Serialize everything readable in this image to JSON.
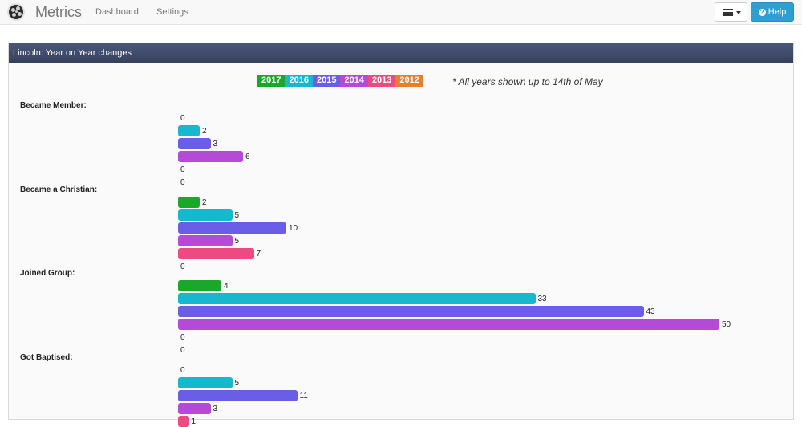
{
  "nav": {
    "brand": "Metrics",
    "links": [
      "Dashboard",
      "Settings"
    ],
    "help_label": "Help"
  },
  "panel": {
    "title": "Lincoln: Year on Year changes",
    "note": "* All years shown up to 14th of May"
  },
  "years": [
    {
      "label": "2017",
      "color": "#1aa82a"
    },
    {
      "label": "2016",
      "color": "#17b7cd"
    },
    {
      "label": "2015",
      "color": "#6a5ee6"
    },
    {
      "label": "2014",
      "color": "#b64ad8"
    },
    {
      "label": "2013",
      "color": "#ee4a82"
    },
    {
      "label": "2012",
      "color": "#e87f2f"
    }
  ],
  "chart_data": {
    "type": "bar",
    "orientation": "horizontal",
    "categories": [
      "Became Member:",
      "Became a Christian:",
      "Joined Group:",
      "Got Baptised:"
    ],
    "series": [
      {
        "name": "2017",
        "values": [
          0,
          2,
          4,
          0
        ]
      },
      {
        "name": "2016",
        "values": [
          2,
          5,
          33,
          5
        ]
      },
      {
        "name": "2015",
        "values": [
          3,
          10,
          43,
          11
        ]
      },
      {
        "name": "2014",
        "values": [
          6,
          5,
          50,
          3
        ]
      },
      {
        "name": "2013",
        "values": [
          0,
          7,
          0,
          1
        ]
      },
      {
        "name": "2012",
        "values": [
          0,
          0,
          0,
          null
        ]
      }
    ]
  }
}
